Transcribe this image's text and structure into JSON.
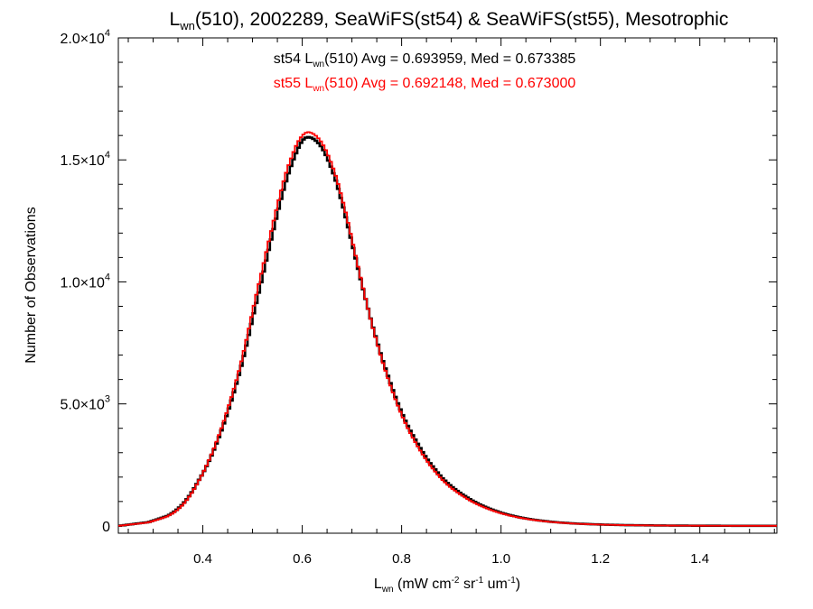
{
  "chart_data": {
    "type": "line",
    "title": {
      "base": "L",
      "sub": "wn",
      "rest": "(510), 2002289, SeaWiFS(st54) & SeaWiFS(st55), Mesotrophic"
    },
    "xlabel": {
      "base": "L",
      "sub": "wn",
      "p1": " (mW cm",
      "sup1": "-2",
      "p2": " sr",
      "sup2": "-1",
      "p3": " um",
      "sup3": "-1",
      "p4": ")"
    },
    "ylabel": "Number of Observations",
    "xlim": [
      0.23,
      1.555
    ],
    "ylim": [
      -300,
      20000
    ],
    "xticks": [
      "0.4",
      "0.6",
      "0.8",
      "1.0",
      "1.2",
      "1.4"
    ],
    "yticks": [
      {
        "value": 0,
        "mant": "0",
        "exp": ""
      },
      {
        "value": 5000,
        "mant": "5.0×10",
        "exp": "3"
      },
      {
        "value": 10000,
        "mant": "1.0×10",
        "exp": "4"
      },
      {
        "value": 15000,
        "mant": "1.5×10",
        "exp": "4"
      },
      {
        "value": 20000,
        "mant": "2.0×10",
        "exp": "4"
      }
    ],
    "annotations": [
      {
        "pre": "st54 L",
        "sub": "wn",
        "post": "(510) Avg = 0.693959, Med = 0.673385",
        "color": "#000000"
      },
      {
        "pre": "st55 L",
        "sub": "wn",
        "post": "(510) Avg = 0.692148, Med = 0.673000",
        "color": "#ff0000"
      }
    ],
    "series": [
      {
        "color": "#000000",
        "step": "post",
        "bin_width": 0.005,
        "x": [
          0.23,
          0.25,
          0.27,
          0.29,
          0.31,
          0.33,
          0.34,
          0.35,
          0.36,
          0.37,
          0.38,
          0.39,
          0.4,
          0.41,
          0.42,
          0.43,
          0.44,
          0.45,
          0.46,
          0.47,
          0.48,
          0.49,
          0.5,
          0.51,
          0.52,
          0.53,
          0.54,
          0.55,
          0.56,
          0.57,
          0.58,
          0.59,
          0.6,
          0.61,
          0.62,
          0.63,
          0.64,
          0.65,
          0.66,
          0.67,
          0.68,
          0.69,
          0.7,
          0.71,
          0.72,
          0.73,
          0.74,
          0.75,
          0.76,
          0.77,
          0.78,
          0.79,
          0.8,
          0.81,
          0.82,
          0.83,
          0.84,
          0.85,
          0.86,
          0.87,
          0.88,
          0.89,
          0.9,
          0.92,
          0.94,
          0.96,
          0.98,
          1.0,
          1.02,
          1.04,
          1.06,
          1.08,
          1.1,
          1.12,
          1.15,
          1.18,
          1.21,
          1.25,
          1.3,
          1.35,
          1.4,
          1.45,
          1.5,
          1.555
        ],
        "y": [
          0,
          50,
          100,
          150,
          280,
          420,
          550,
          700,
          900,
          1150,
          1450,
          1800,
          2150,
          2550,
          3000,
          3500,
          4050,
          4650,
          5300,
          6000,
          6750,
          7600,
          8500,
          9350,
          10200,
          11100,
          11950,
          12800,
          13600,
          14300,
          14900,
          15400,
          15800,
          15950,
          15900,
          15750,
          15500,
          15100,
          14600,
          14000,
          13250,
          12450,
          11600,
          10750,
          9900,
          9100,
          8300,
          7600,
          6900,
          6300,
          5700,
          5150,
          4650,
          4200,
          3800,
          3450,
          3100,
          2780,
          2500,
          2250,
          2000,
          1800,
          1620,
          1320,
          1060,
          850,
          680,
          540,
          430,
          340,
          270,
          215,
          170,
          135,
          95,
          70,
          50,
          32,
          20,
          12,
          8,
          5,
          3,
          2
        ]
      },
      {
        "color": "#ff0000",
        "step": "post",
        "bin_width": 0.005,
        "x": [
          0.23,
          0.25,
          0.27,
          0.29,
          0.31,
          0.33,
          0.34,
          0.35,
          0.36,
          0.37,
          0.38,
          0.39,
          0.4,
          0.41,
          0.42,
          0.43,
          0.44,
          0.45,
          0.46,
          0.47,
          0.48,
          0.49,
          0.5,
          0.51,
          0.52,
          0.53,
          0.54,
          0.55,
          0.56,
          0.57,
          0.58,
          0.59,
          0.6,
          0.61,
          0.62,
          0.63,
          0.64,
          0.65,
          0.66,
          0.67,
          0.68,
          0.69,
          0.7,
          0.71,
          0.72,
          0.73,
          0.74,
          0.75,
          0.76,
          0.77,
          0.78,
          0.79,
          0.8,
          0.81,
          0.82,
          0.83,
          0.84,
          0.85,
          0.86,
          0.87,
          0.88,
          0.89,
          0.9,
          0.92,
          0.94,
          0.96,
          0.98,
          1.0,
          1.02,
          1.04,
          1.06,
          1.08,
          1.1,
          1.12,
          1.15,
          1.18,
          1.21,
          1.25,
          1.3,
          1.35,
          1.4,
          1.45,
          1.5,
          1.555
        ],
        "y": [
          0,
          45,
          90,
          140,
          260,
          400,
          520,
          670,
          870,
          1120,
          1420,
          1780,
          2150,
          2580,
          3050,
          3580,
          4150,
          4780,
          5450,
          6150,
          6950,
          7850,
          8800,
          9700,
          10550,
          11450,
          12300,
          13150,
          13950,
          14650,
          15200,
          15700,
          16000,
          16150,
          16100,
          15950,
          15700,
          15300,
          14800,
          14200,
          13450,
          12650,
          11750,
          10850,
          9950,
          9100,
          8280,
          7550,
          6830,
          6200,
          5600,
          5050,
          4550,
          4100,
          3700,
          3340,
          3000,
          2690,
          2410,
          2160,
          1930,
          1730,
          1550,
          1260,
          1010,
          810,
          650,
          515,
          410,
          325,
          258,
          205,
          162,
          128,
          90,
          66,
          47,
          30,
          19,
          11,
          7,
          4,
          3,
          2
        ]
      }
    ]
  }
}
